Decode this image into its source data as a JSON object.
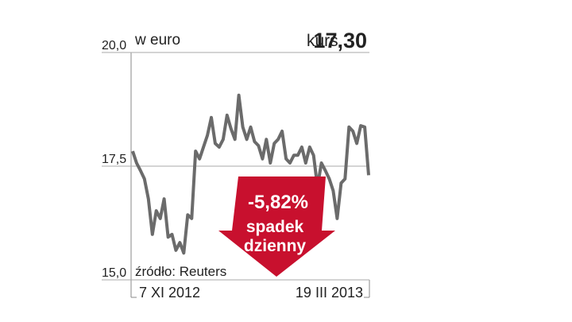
{
  "chart_data": {
    "type": "line",
    "subtitle": "w euro",
    "price_label": "kurs",
    "price": "17,30",
    "change": "-5,82%",
    "change_text": [
      "spadek",
      "dzienny"
    ],
    "source": "źródło: Reuters",
    "categories": [
      "7 XI 2012",
      null,
      null,
      null,
      null,
      null,
      null,
      null,
      null,
      null,
      null,
      null,
      null,
      null,
      null,
      null,
      null,
      null,
      null,
      null,
      null,
      null,
      null,
      null,
      null,
      null,
      null,
      null,
      null,
      null,
      null,
      null,
      null,
      null,
      null,
      null,
      null,
      null,
      null,
      null,
      null,
      null,
      null,
      null,
      null,
      null,
      null,
      null,
      null,
      null,
      null,
      null,
      null,
      null,
      null,
      null,
      null,
      null,
      null,
      null,
      "19 III 2013"
    ],
    "values": [
      17.83,
      17.57,
      17.4,
      17.22,
      16.78,
      16.0,
      16.52,
      16.35,
      16.78,
      15.94,
      16.0,
      15.65,
      15.82,
      15.59,
      16.43,
      16.35,
      17.83,
      17.66,
      17.92,
      18.18,
      18.57,
      18.0,
      17.92,
      18.09,
      18.62,
      18.32,
      18.09,
      19.06,
      18.36,
      18.09,
      18.36,
      18.04,
      17.95,
      17.66,
      18.09,
      17.57,
      18.0,
      18.09,
      18.27,
      17.66,
      17.57,
      17.74,
      17.74,
      17.92,
      17.57,
      17.92,
      17.74,
      17.05,
      17.57,
      17.4,
      17.22,
      16.96,
      16.35,
      17.13,
      17.22,
      18.36,
      18.27,
      18.0,
      18.39,
      18.36,
      17.3
    ],
    "color": "#6b6b6b",
    "arrow_color": "#c8102e",
    "ylim": [
      15.0,
      20.0
    ],
    "yticks": [
      {
        "value": 20.0,
        "label": "20,0"
      },
      {
        "value": 17.5,
        "label": "17,5"
      },
      {
        "value": 15.0,
        "label": "15,0"
      }
    ],
    "grid": true
  }
}
